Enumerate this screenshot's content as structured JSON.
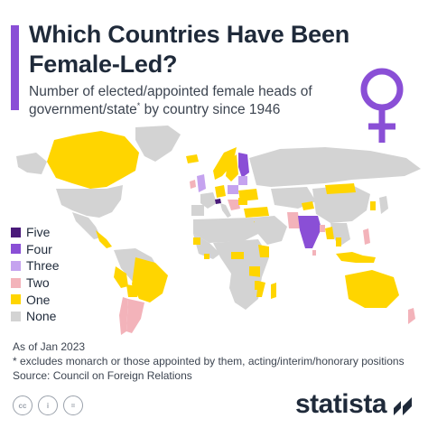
{
  "header": {
    "title": "Which Countries Have Been Female-Led?",
    "subtitle_main": "Number of elected/appointed female heads of government/state",
    "subtitle_mark": "*",
    "subtitle_tail": " by country since 1946"
  },
  "legend": {
    "items": [
      {
        "label": "Five",
        "color": "#4a1a7a"
      },
      {
        "label": "Four",
        "color": "#8a4fd6"
      },
      {
        "label": "Three",
        "color": "#c5a3ef"
      },
      {
        "label": "Two",
        "color": "#f3b3ba"
      },
      {
        "label": "One",
        "color": "#ffd500"
      },
      {
        "label": "None",
        "color": "#d3d3d3"
      }
    ]
  },
  "map_colors": {
    "five": "#4a1a7a",
    "four": "#8a4fd6",
    "three": "#c5a3ef",
    "two": "#f3b3ba",
    "one": "#ffd500",
    "none": "#d3d3d3"
  },
  "footnotes": {
    "as_of": "As of Jan 2023",
    "exclusions": "* excludes monarch or those appointed by them, acting/interim/honorary positions",
    "source": "Source: Council on Foreign Relations"
  },
  "footer": {
    "brand": "statista",
    "license_icons": [
      "cc-icon",
      "by-icon",
      "nd-icon"
    ],
    "license_labels": [
      "cc",
      "i",
      "="
    ]
  },
  "icons": {
    "venus": "venus-symbol-icon",
    "venus_color": "#8a4fd6"
  }
}
